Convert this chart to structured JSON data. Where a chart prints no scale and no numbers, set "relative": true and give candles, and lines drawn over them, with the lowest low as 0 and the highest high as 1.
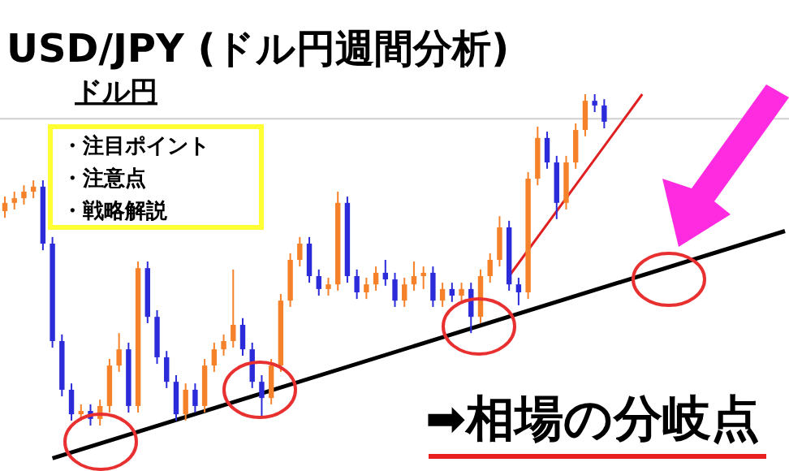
{
  "chart_data": {
    "type": "candlestick",
    "title": "USD/JPY (ドル円週間分析)",
    "subtitle": "ドル円",
    "relative": true,
    "categories": [
      null,
      null,
      null,
      null,
      null,
      null,
      null,
      null,
      null,
      null,
      null,
      null,
      null,
      null,
      null,
      null,
      null,
      null,
      null,
      null,
      null,
      null,
      null,
      null,
      null,
      null,
      null,
      null,
      null,
      null,
      null,
      null,
      null,
      null,
      null,
      null,
      null,
      null,
      null,
      null,
      null,
      null,
      null,
      null,
      null,
      null,
      null,
      null,
      null,
      null,
      null,
      null,
      null,
      null,
      null,
      null,
      null,
      null,
      null,
      null,
      null,
      null,
      null,
      null,
      null,
      null,
      null,
      null,
      null,
      null,
      null,
      null,
      null,
      null,
      null,
      null,
      null,
      null,
      null,
      null,
      null,
      null,
      null
    ],
    "ohlc": [
      [
        0.647,
        0.691,
        0.627,
        0.672
      ],
      [
        0.672,
        0.706,
        0.652,
        0.686
      ],
      [
        0.686,
        0.725,
        0.667,
        0.706
      ],
      [
        0.706,
        0.74,
        0.686,
        0.721
      ],
      [
        0.721,
        0.74,
        0.529,
        0.549
      ],
      [
        0.549,
        0.569,
        0.235,
        0.255
      ],
      [
        0.255,
        0.275,
        0.088,
        0.108
      ],
      [
        0.108,
        0.127,
        0.015,
        0.034
      ],
      [
        0.034,
        0.064,
        0.015,
        0.044
      ],
      [
        0.044,
        0.064,
        0,
        0.02
      ],
      [
        0.02,
        0.078,
        0,
        0.059
      ],
      [
        0.059,
        0.201,
        0.039,
        0.181
      ],
      [
        0.181,
        0.279,
        0.162,
        0.23
      ],
      [
        0.23,
        0.25,
        0.039,
        0.059
      ],
      [
        0.059,
        0.495,
        0.039,
        0.475
      ],
      [
        0.475,
        0.495,
        0.309,
        0.328
      ],
      [
        0.328,
        0.348,
        0.186,
        0.206
      ],
      [
        0.206,
        0.225,
        0.113,
        0.132
      ],
      [
        0.132,
        0.152,
        0.015,
        0.034
      ],
      [
        0.034,
        0.127,
        0.015,
        0.108
      ],
      [
        0.108,
        0.127,
        0.039,
        0.059
      ],
      [
        0.059,
        0.201,
        0.039,
        0.181
      ],
      [
        0.181,
        0.25,
        0.162,
        0.23
      ],
      [
        0.23,
        0.275,
        0.211,
        0.255
      ],
      [
        0.255,
        0.471,
        0.235,
        0.304
      ],
      [
        0.304,
        0.324,
        0.211,
        0.23
      ],
      [
        0.23,
        0.25,
        0.113,
        0.132
      ],
      [
        0.132,
        0.152,
        0.029,
        0.083
      ],
      [
        0.083,
        0.201,
        0.064,
        0.181
      ],
      [
        0.181,
        0.397,
        0.162,
        0.377
      ],
      [
        0.377,
        0.52,
        0.358,
        0.5
      ],
      [
        0.5,
        0.569,
        0.48,
        0.549
      ],
      [
        0.549,
        0.569,
        0.431,
        0.451
      ],
      [
        0.451,
        0.471,
        0.392,
        0.412
      ],
      [
        0.412,
        0.446,
        0.392,
        0.426
      ],
      [
        0.426,
        0.706,
        0.407,
        0.672
      ],
      [
        0.672,
        0.691,
        0.431,
        0.451
      ],
      [
        0.451,
        0.471,
        0.382,
        0.402
      ],
      [
        0.402,
        0.446,
        0.382,
        0.426
      ],
      [
        0.426,
        0.48,
        0.407,
        0.461
      ],
      [
        0.461,
        0.5,
        0.422,
        0.441
      ],
      [
        0.441,
        0.461,
        0.358,
        0.377
      ],
      [
        0.377,
        0.446,
        0.358,
        0.426
      ],
      [
        0.426,
        0.495,
        0.407,
        0.451
      ],
      [
        0.451,
        0.48,
        0.412,
        0.461
      ],
      [
        0.461,
        0.48,
        0.358,
        0.377
      ],
      [
        0.377,
        0.431,
        0.358,
        0.412
      ],
      [
        0.412,
        0.431,
        0.373,
        0.392
      ],
      [
        0.392,
        0.431,
        0.373,
        0.412
      ],
      [
        0.412,
        0.431,
        0.279,
        0.328
      ],
      [
        0.328,
        0.471,
        0.309,
        0.451
      ],
      [
        0.451,
        0.52,
        0.431,
        0.5
      ],
      [
        0.5,
        0.632,
        0.48,
        0.598
      ],
      [
        0.598,
        0.618,
        0.407,
        0.426
      ],
      [
        0.426,
        0.446,
        0.363,
        0.402
      ],
      [
        0.402,
        0.765,
        0.382,
        0.745
      ],
      [
        0.745,
        0.902,
        0.725,
        0.868
      ],
      [
        0.868,
        0.887,
        0.775,
        0.794
      ],
      [
        0.794,
        0.814,
        0.623,
        0.672
      ],
      [
        0.672,
        0.814,
        0.652,
        0.794
      ],
      [
        0.794,
        0.912,
        0.775,
        0.892
      ],
      [
        0.892,
        1.0,
        0.873,
        0.98
      ],
      [
        0.98,
        1.0,
        0.946,
        0.966
      ],
      [
        0.966,
        0.985,
        0.897,
        0.917
      ],
      null,
      null,
      null,
      null,
      null,
      null,
      null,
      null,
      null,
      null,
      null,
      null,
      null,
      null,
      null,
      null,
      null,
      null,
      null
    ],
    "colors": [
      "#f5822a",
      "#f5822a",
      "#f5822a",
      "#f5822a",
      "#2b2bd9",
      "#2b2bd9",
      "#2b2bd9",
      "#2b2bd9",
      "#f5822a",
      "#2b2bd9",
      "#f5822a",
      "#f5822a",
      "#f5822a",
      "#2b2bd9",
      "#f5822a",
      "#2b2bd9",
      "#2b2bd9",
      "#2b2bd9",
      "#2b2bd9",
      "#f5822a",
      "#2b2bd9",
      "#f5822a",
      "#f5822a",
      "#f5822a",
      "#f5822a",
      "#2b2bd9",
      "#2b2bd9",
      "#2b2bd9",
      "#f5822a",
      "#f5822a",
      "#f5822a",
      "#f5822a",
      "#2b2bd9",
      "#2b2bd9",
      "#f5822a",
      "#f5822a",
      "#2b2bd9",
      "#2b2bd9",
      "#f5822a",
      "#f5822a",
      "#2b2bd9",
      "#2b2bd9",
      "#f5822a",
      "#f5822a",
      "#f5822a",
      "#2b2bd9",
      "#f5822a",
      "#2b2bd9",
      "#f5822a",
      "#2b2bd9",
      "#f5822a",
      "#f5822a",
      "#f5822a",
      "#2b2bd9",
      "#2b2bd9",
      "#f5822a",
      "#f5822a",
      "#2b2bd9",
      "#2b2bd9",
      "#f5822a",
      "#f5822a",
      "#f5822a",
      "#2b2bd9",
      "#2b2bd9",
      null,
      null,
      null,
      null,
      null,
      null,
      null,
      null,
      null,
      null,
      null,
      null,
      null,
      null,
      null,
      null,
      null,
      null,
      null
    ],
    "series": [
      {
        "type": "line",
        "color": "#000000",
        "values": [
          null,
          null,
          null,
          null,
          null,
          -0.099,
          null,
          null,
          null,
          null,
          null,
          null,
          null,
          null,
          null,
          null,
          null,
          null,
          null,
          null,
          null,
          null,
          null,
          null,
          null,
          null,
          null,
          null,
          null,
          null,
          null,
          null,
          null,
          null,
          null,
          null,
          null,
          null,
          null,
          null,
          null,
          null,
          null,
          null,
          null,
          null,
          null,
          null,
          null,
          null,
          null,
          null,
          null,
          null,
          null,
          null,
          null,
          null,
          null,
          null,
          null,
          null,
          null,
          null,
          null,
          null,
          null,
          null,
          null,
          null,
          null,
          null,
          null,
          null,
          null,
          null,
          null,
          null,
          null,
          null,
          null,
          null,
          0.587
        ]
      },
      {
        "type": "line",
        "color": "#e02020",
        "values": [
          null,
          null,
          null,
          null,
          null,
          null,
          null,
          null,
          null,
          null,
          null,
          null,
          null,
          null,
          null,
          null,
          null,
          null,
          null,
          null,
          null,
          null,
          null,
          null,
          null,
          null,
          null,
          null,
          null,
          null,
          null,
          null,
          null,
          null,
          null,
          null,
          null,
          null,
          null,
          null,
          null,
          null,
          null,
          null,
          null,
          null,
          null,
          null,
          null,
          null,
          null,
          null,
          null,
          0.451,
          null,
          null,
          null,
          null,
          null,
          null,
          null,
          null,
          null,
          null,
          null,
          null,
          null,
          1.0,
          null,
          null,
          null,
          null,
          null,
          null,
          null,
          null,
          null,
          null,
          null,
          null,
          null,
          null,
          null
        ]
      }
    ],
    "ref_lines": [
      {
        "axis": "y",
        "value": 0.926,
        "color": "#d0d0d0"
      }
    ],
    "annotations": [
      "・注目ポイント",
      "・注意点",
      "・戦略解説",
      "➡相場の分岐点"
    ]
  }
}
